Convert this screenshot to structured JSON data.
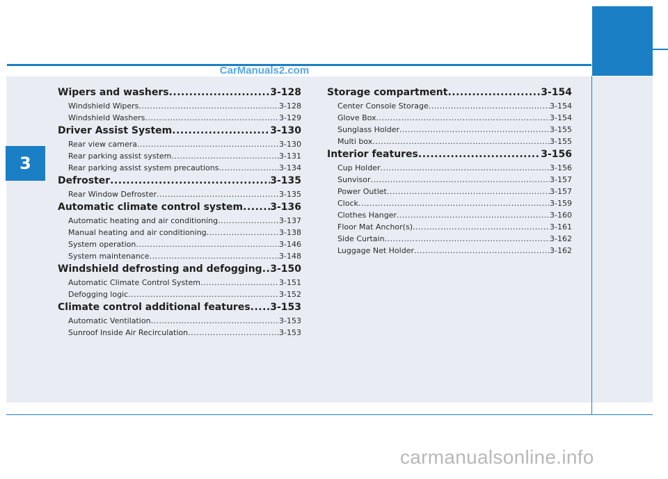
{
  "watermark_top": "CarManuals2.com",
  "watermark_bottom": "carmanualsonline.info",
  "chapter_number": "3",
  "colors": {
    "accent": "#1a7fc4",
    "panel": "#e9edf3"
  },
  "left_column": [
    {
      "title": "Wipers and washers",
      "page": "3-128",
      "entries": [
        {
          "label": "Windshield Wipers",
          "page": "3-128"
        },
        {
          "label": "Windshield Washers",
          "page": "3-129"
        }
      ]
    },
    {
      "title": "Driver Assist System",
      "page": "3-130",
      "entries": [
        {
          "label": "Rear view camera",
          "page": "3-130"
        },
        {
          "label": "Rear parking assist system",
          "page": "3-131"
        },
        {
          "label": "Rear parking assist system precautions",
          "page": "3-134"
        }
      ]
    },
    {
      "title": "Defroster",
      "page": "3-135",
      "entries": [
        {
          "label": "Rear Window Defroster",
          "page": "3-135"
        }
      ]
    },
    {
      "title": "Automatic climate control system",
      "page": "3-136",
      "entries": [
        {
          "label": "Automatic heating and air conditioning",
          "page": "3-137"
        },
        {
          "label": "Manual heating and air conditioning",
          "page": "3-138"
        },
        {
          "label": "System operation",
          "page": "3-146"
        },
        {
          "label": "System maintenance",
          "page": "3-148"
        }
      ]
    },
    {
      "title": "Windshield defrosting and defogging",
      "page": "3-150",
      "entries": [
        {
          "label": "Automatic Climate Control System",
          "page": "3-151"
        },
        {
          "label": "Defogging logic",
          "page": "3-152"
        }
      ]
    },
    {
      "title": "Climate control additional features",
      "page": "3-153",
      "entries": [
        {
          "label": "Automatic Ventilation",
          "page": "3-153"
        },
        {
          "label": "Sunroof Inside Air Recirculation",
          "page": "3-153"
        }
      ]
    }
  ],
  "right_column": [
    {
      "title": "Storage compartment",
      "page": "3-154",
      "entries": [
        {
          "label": "Center Console Storage",
          "page": "3-154"
        },
        {
          "label": "Glove Box",
          "page": "3-154"
        },
        {
          "label": "Sunglass Holder",
          "page": "3-155"
        },
        {
          "label": "Multi box",
          "page": "3-155"
        }
      ]
    },
    {
      "title": "Interior features",
      "page": "3-156",
      "entries": [
        {
          "label": "Cup Holder",
          "page": "3-156"
        },
        {
          "label": "Sunvisor",
          "page": "3-157"
        },
        {
          "label": "Power Outlet",
          "page": "3-157"
        },
        {
          "label": "Clock",
          "page": "3-159"
        },
        {
          "label": "Clothes Hanger",
          "page": "3-160"
        },
        {
          "label": "Floor Mat Anchor(s)",
          "page": "3-161"
        },
        {
          "label": "Side Curtain",
          "page": "3-162"
        },
        {
          "label": "Luggage Net Holder",
          "page": "3-162"
        }
      ]
    }
  ]
}
